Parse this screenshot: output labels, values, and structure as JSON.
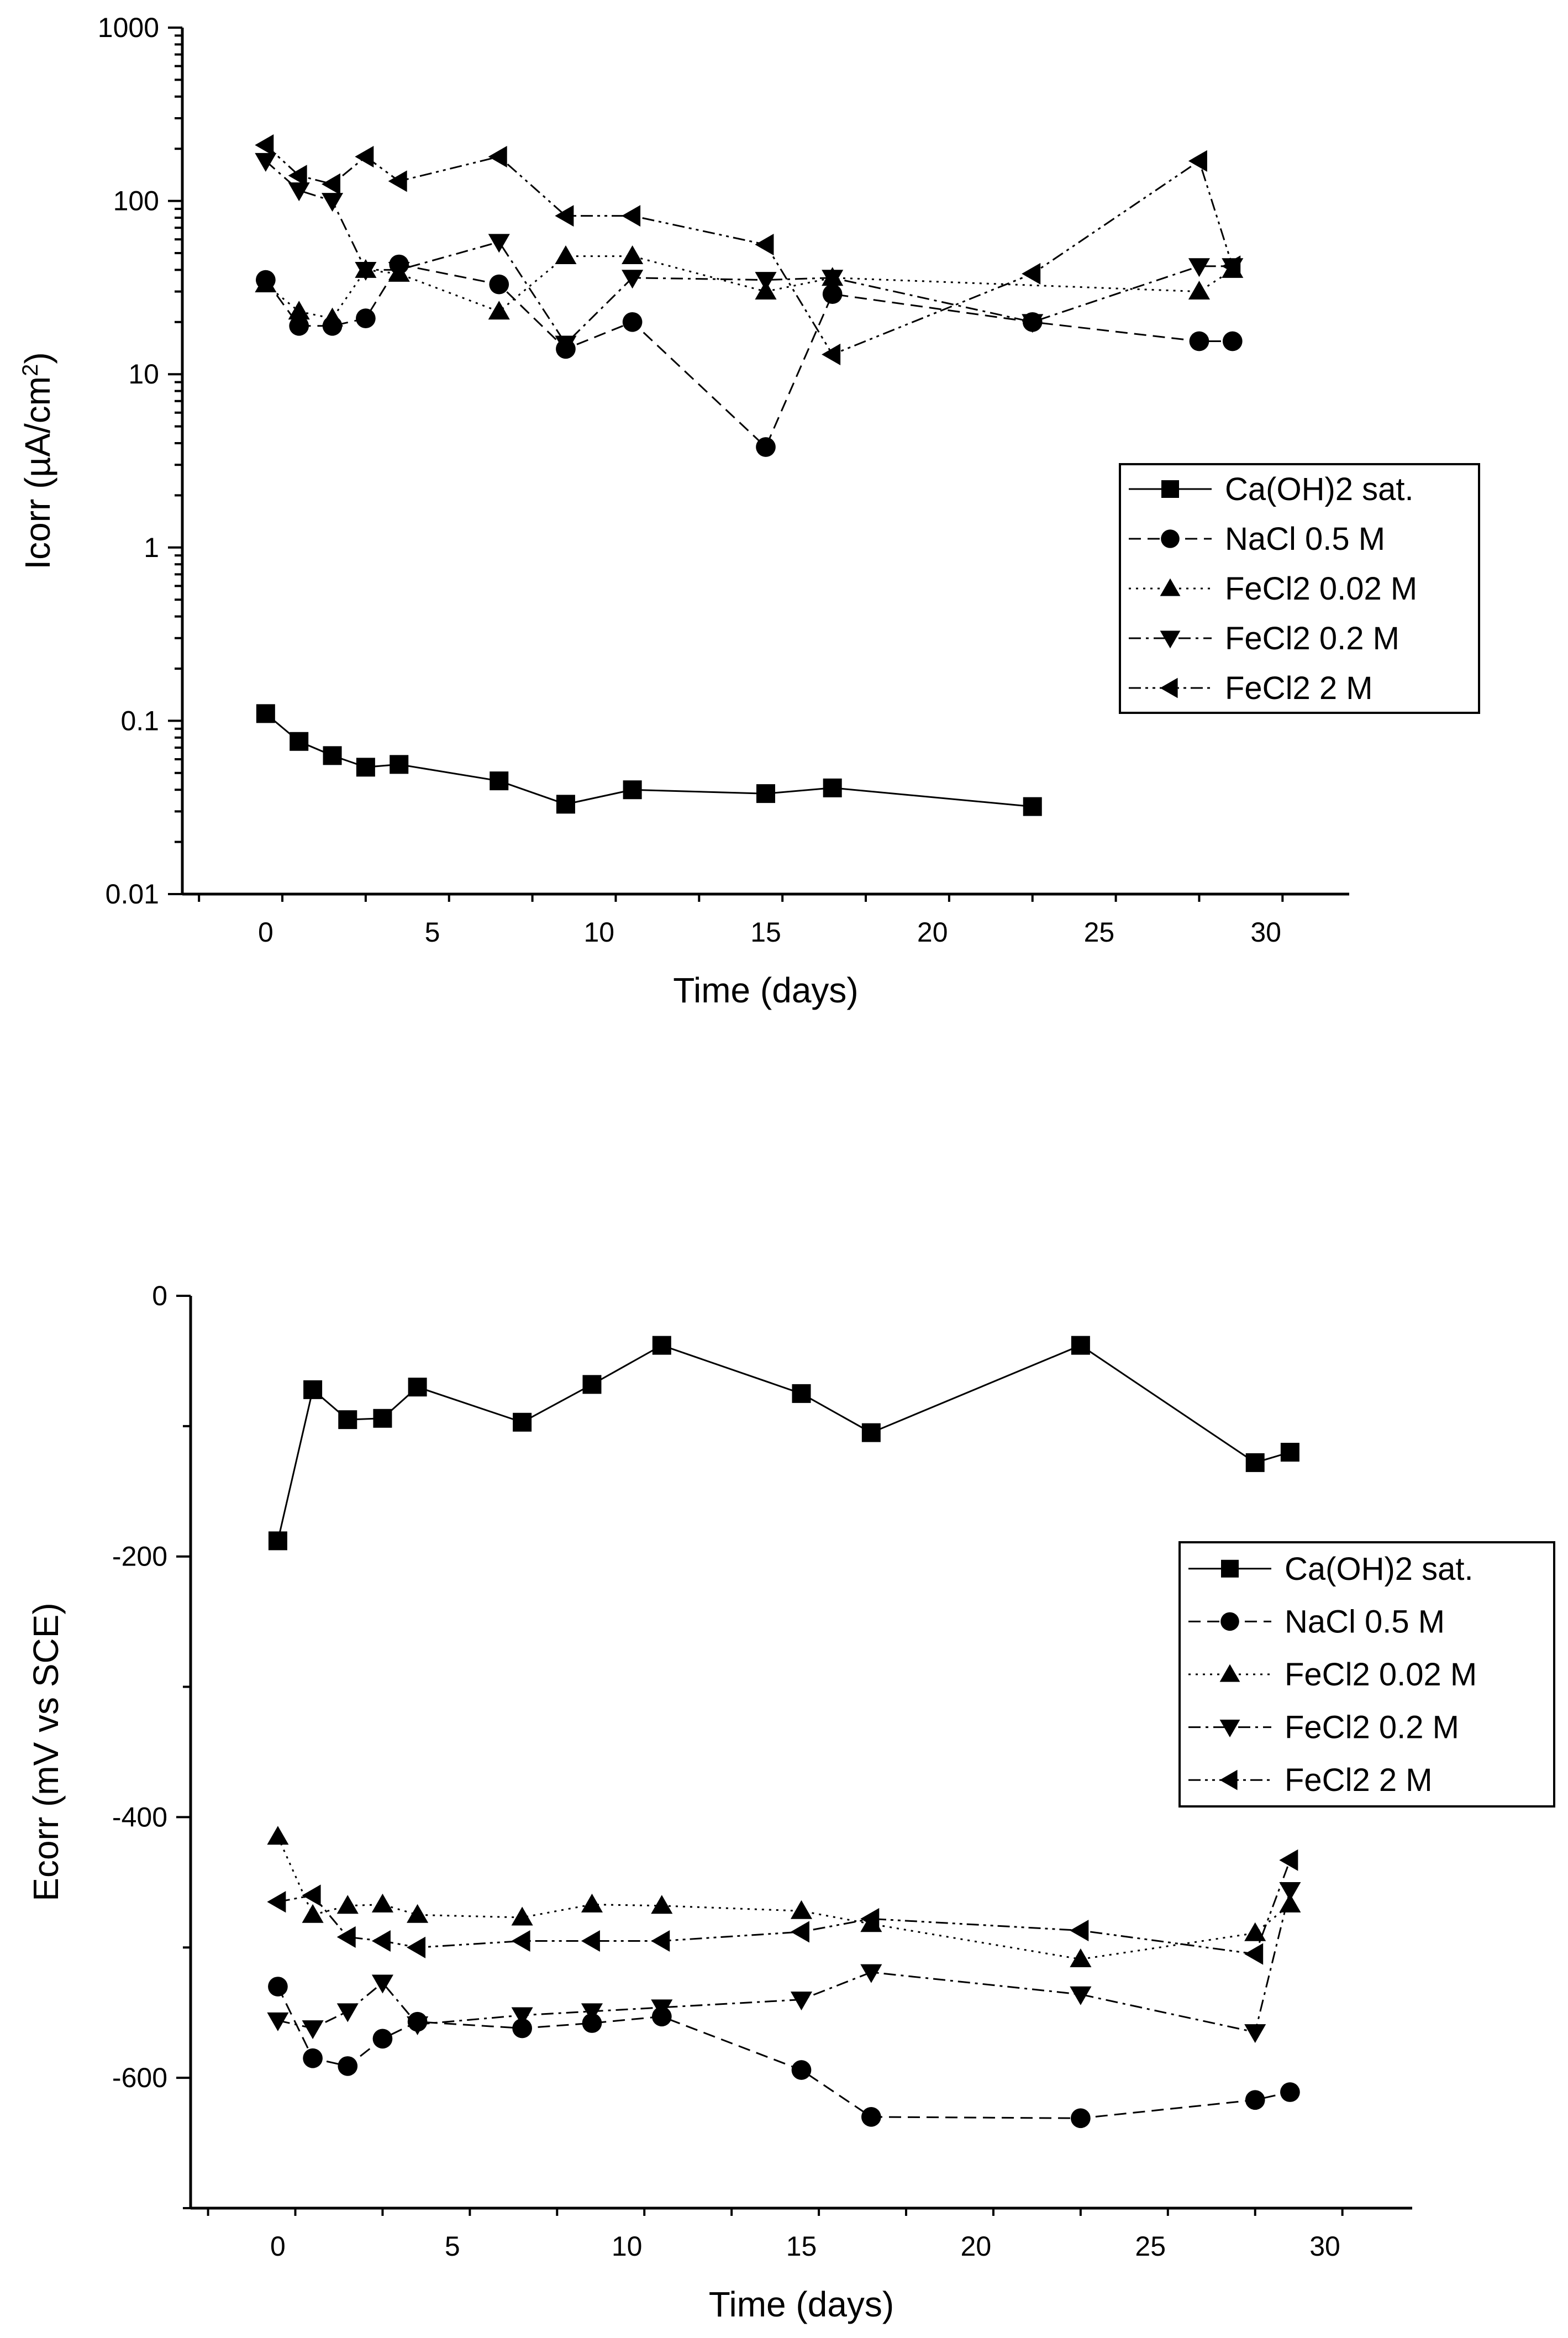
{
  "chart_data": [
    {
      "type": "line",
      "title": "",
      "xlabel": "Time (days)",
      "ylabel_prefix": "Icorr (µA/cm",
      "ylabel_sup": "2",
      "ylabel_suffix": ")",
      "yscale": "log",
      "xlim": [
        -2.5,
        32.5
      ],
      "ylim": [
        0.01,
        1000
      ],
      "xticks": [
        0,
        5,
        10,
        15,
        20,
        25,
        30
      ],
      "yticks": [
        0.01,
        0.1,
        1,
        10,
        100,
        1000
      ],
      "ytick_labels": [
        "0.01",
        "0.1",
        "1",
        "10",
        "100",
        "1000"
      ],
      "grid": false,
      "legend_position": "right",
      "series": [
        {
          "name": "Ca(OH)2 sat.",
          "marker": "square",
          "dash": "solid",
          "x": [
            0,
            1,
            2,
            3,
            4,
            7,
            9,
            11,
            15,
            17,
            23
          ],
          "y": [
            0.11,
            0.076,
            0.063,
            0.054,
            0.056,
            0.045,
            0.033,
            0.04,
            0.038,
            0.041,
            0.032
          ]
        },
        {
          "name": "NaCl 0.5 M",
          "marker": "circle",
          "dash": "dashed",
          "x": [
            0,
            1,
            2,
            3,
            4,
            7,
            9,
            11,
            15,
            17,
            23,
            28,
            29
          ],
          "y": [
            35,
            19,
            19,
            21,
            43,
            33,
            14,
            20,
            3.8,
            29,
            20,
            15.5,
            15.5
          ]
        },
        {
          "name": "FeCl2 0.02 M",
          "marker": "triangle-up",
          "dash": "dotted",
          "x": [
            0,
            1,
            2,
            3,
            4,
            7,
            9,
            11,
            15,
            17,
            28,
            29
          ],
          "y": [
            33,
            23,
            21,
            40,
            38,
            23,
            48,
            48,
            30,
            36,
            30,
            40
          ]
        },
        {
          "name": "FeCl2 0.2 M",
          "marker": "triangle-down",
          "dash": "dashdot",
          "x": [
            0,
            1,
            2,
            3,
            4,
            7,
            9,
            11,
            15,
            17,
            23,
            28,
            29
          ],
          "y": [
            170,
            115,
            100,
            40,
            40,
            58,
            15,
            36,
            35,
            36,
            20,
            42,
            42
          ]
        },
        {
          "name": "FeCl2 2 M",
          "marker": "triangle-left",
          "dash": "dashdotdot",
          "x": [
            0,
            1,
            2,
            3,
            4,
            7,
            9,
            11,
            15,
            17,
            23,
            28,
            29
          ],
          "y": [
            210,
            140,
            125,
            180,
            130,
            180,
            82,
            82,
            56,
            13,
            38,
            170,
            42
          ]
        }
      ]
    },
    {
      "type": "line",
      "title": "",
      "xlabel": "Time (days)",
      "ylabel": "Ecorr (mV vs SCE)",
      "yscale": "linear",
      "xlim": [
        -2.5,
        32.5
      ],
      "ylim": [
        -700,
        0
      ],
      "xticks": [
        0,
        5,
        10,
        15,
        20,
        25,
        30
      ],
      "yticks": [
        0,
        -200,
        -400,
        -600
      ],
      "ytick_labels": [
        "0",
        "-200",
        "-400",
        "-600"
      ],
      "grid": false,
      "legend_position": "right",
      "series": [
        {
          "name": "Ca(OH)2 sat.",
          "marker": "square",
          "dash": "solid",
          "x": [
            0,
            1,
            2,
            3,
            4,
            7,
            9,
            11,
            15,
            17,
            23,
            28,
            29
          ],
          "y": [
            -188,
            -72,
            -95,
            -94,
            -70,
            -97,
            -68,
            -38,
            -75,
            -105,
            -38,
            -128,
            -120
          ]
        },
        {
          "name": "NaCl 0.5 M",
          "marker": "circle",
          "dash": "dashed",
          "x": [
            0,
            1,
            2,
            3,
            4,
            7,
            9,
            11,
            15,
            17,
            23,
            28,
            29
          ],
          "y": [
            -530,
            -585,
            -591,
            -570,
            -557,
            -562,
            -558,
            -553,
            -594,
            -630,
            -631,
            -617,
            -611
          ]
        },
        {
          "name": "FeCl2 0.02 M",
          "marker": "triangle-up",
          "dash": "dotted",
          "x": [
            0,
            1,
            2,
            3,
            4,
            7,
            9,
            11,
            15,
            17,
            23,
            28,
            29
          ],
          "y": [
            -415,
            -475,
            -468,
            -467,
            -475,
            -477,
            -467,
            -468,
            -472,
            -482,
            -509,
            -489,
            -467
          ]
        },
        {
          "name": "FeCl2 0.2 M",
          "marker": "triangle-down",
          "dash": "dashdot",
          "x": [
            0,
            1,
            2,
            3,
            4,
            7,
            9,
            11,
            15,
            17,
            23,
            28,
            29
          ],
          "y": [
            -556,
            -562,
            -549,
            -527,
            -559,
            -552,
            -549,
            -546,
            -540,
            -519,
            -536,
            -565,
            -456
          ]
        },
        {
          "name": "FeCl2 2 M",
          "marker": "triangle-left",
          "dash": "dashdotdot",
          "x": [
            0,
            1,
            2,
            3,
            4,
            7,
            9,
            11,
            15,
            17,
            23,
            28,
            29
          ],
          "y": [
            -465,
            -460,
            -492,
            -495,
            -500,
            -495,
            -495,
            -495,
            -488,
            -478,
            -487,
            -505,
            -433
          ]
        }
      ]
    }
  ]
}
